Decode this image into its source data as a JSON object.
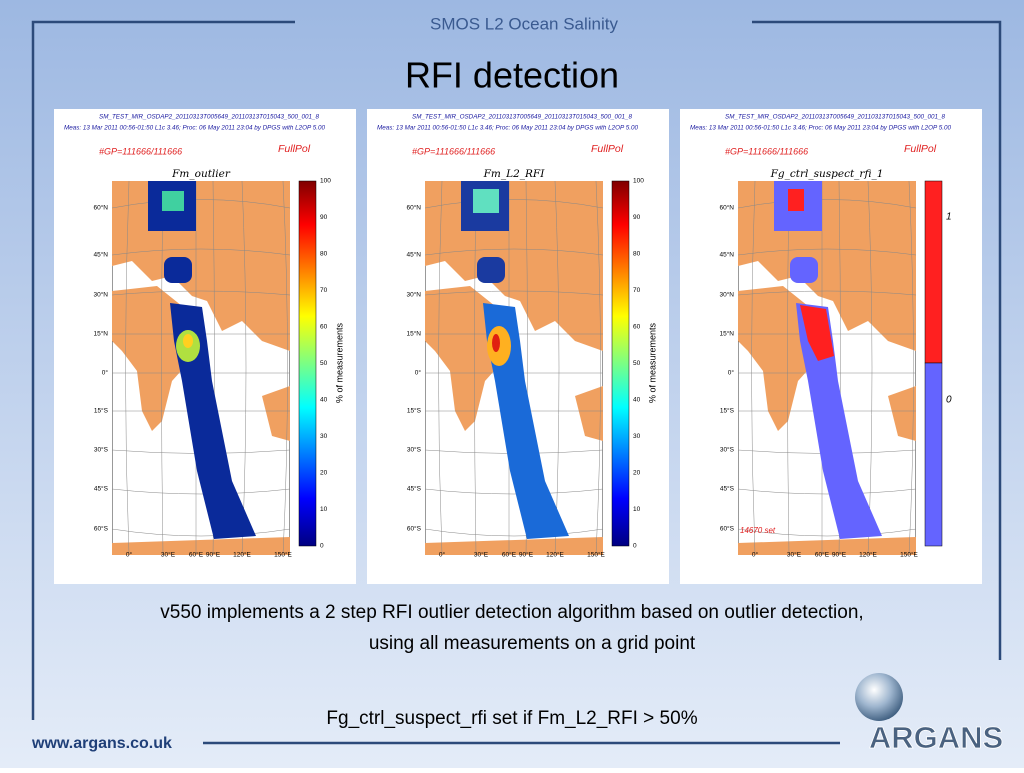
{
  "header": {
    "subtitle": "SMOS L2 Ocean Salinity",
    "title": "RFI detection"
  },
  "map_axes": {
    "lat_labels": [
      "60°N",
      "45°N",
      "30°N",
      "15°N",
      "0°",
      "15°S",
      "30°S",
      "45°S",
      "60°S"
    ],
    "lon_labels": [
      "0°",
      "30°E",
      "60°E",
      "90°E",
      "120°E",
      "150°E"
    ]
  },
  "panels": [
    {
      "file": "SM_TEST_MIR_OSDAP2_20110313T005649_20110313T015043_500_001_8",
      "meas": "Meas: 13 Mar 2011 00:56-01:50 L1c 3.46; Proc: 06 May 2011 23:04 by DPGS with L2OP 5.00",
      "gp": "#GP=111666/111666",
      "mode": "FullPol",
      "map_title": "Fm_outlier",
      "colorbar_label": "% of measurements",
      "colorbar_ticks": [
        100,
        90,
        80,
        70,
        60,
        50,
        40,
        30,
        20,
        10,
        0
      ]
    },
    {
      "file": "SM_TEST_MIR_OSDAP2_20110313T005649_20110313T015043_500_001_8",
      "meas": "Meas: 13 Mar 2011 00:56-01:50 L1c 3.46; Proc: 06 May 2011 23:04 by DPGS with L2OP 5.00",
      "gp": "#GP=111666/111666",
      "mode": "FullPol",
      "map_title": "Fm_L2_RFI",
      "colorbar_label": "% of measurements",
      "colorbar_ticks": [
        100,
        90,
        80,
        70,
        60,
        50,
        40,
        30,
        20,
        10,
        0
      ]
    },
    {
      "file": "SM_TEST_MIR_OSDAP2_20110313T005649_20110313T015043_500_001_8",
      "meas": "Meas: 13 Mar 2011 00:56-01:50 L1c 3.46; Proc: 06 May 2011 23:04 by DPGS with L2OP 5.00",
      "gp": "#GP=111666/111666",
      "mode": "FullPol",
      "map_title": "Fg_ctrl_suspect_rfi_1",
      "colorbar_ticks": [
        1,
        0
      ],
      "note": "14670 set"
    }
  ],
  "body": {
    "lines": [
      "v550 implements a 2 step RFI outlier detection algorithm based on outlier detection,",
      "using all measurements on a grid point"
    ],
    "condition": "Fg_ctrl_suspect_rfi set if Fm_L2_RFI > 50%"
  },
  "footer": {
    "url": "www.argans.co.uk",
    "logo": "ARGANS"
  }
}
